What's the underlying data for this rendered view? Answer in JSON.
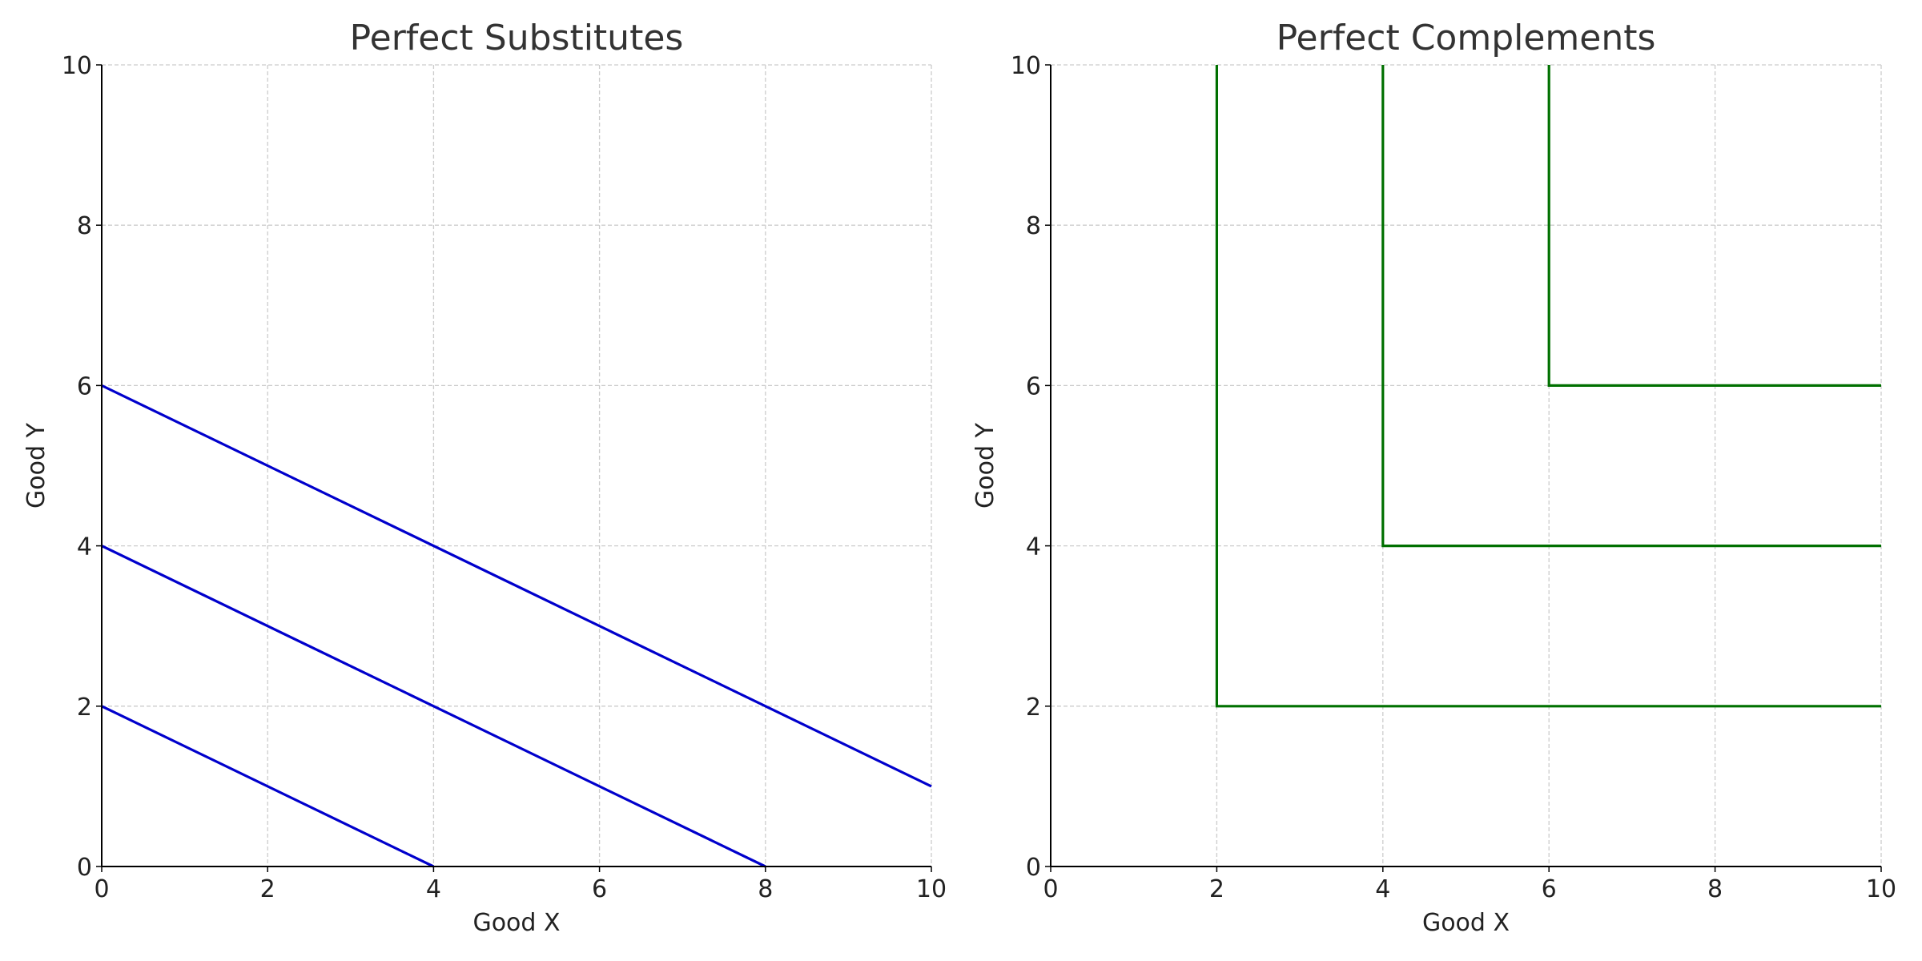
{
  "chart_data": [
    {
      "type": "line",
      "title": "Perfect Substitutes",
      "xlabel": "Good X",
      "ylabel": "Good Y",
      "xlim": [
        0,
        10
      ],
      "ylim": [
        0,
        10
      ],
      "xticks": [
        0,
        2,
        4,
        6,
        8,
        10
      ],
      "yticks": [
        0,
        2,
        4,
        6,
        8,
        10
      ],
      "grid": true,
      "series": [
        {
          "color": "#0000cc",
          "x": [
            0,
            4
          ],
          "values": [
            2,
            0
          ]
        },
        {
          "color": "#0000cc",
          "x": [
            0,
            8
          ],
          "values": [
            4,
            0
          ]
        },
        {
          "color": "#0000cc",
          "x": [
            0,
            10
          ],
          "values": [
            6,
            1
          ]
        }
      ]
    },
    {
      "type": "line",
      "title": "Perfect Complements",
      "xlabel": "Good X",
      "ylabel": "Good Y",
      "xlim": [
        0,
        10
      ],
      "ylim": [
        0,
        10
      ],
      "xticks": [
        0,
        2,
        4,
        6,
        8,
        10
      ],
      "yticks": [
        0,
        2,
        4,
        6,
        8,
        10
      ],
      "grid": true,
      "series": [
        {
          "color": "#007000",
          "x": [
            2,
            2,
            10
          ],
          "values": [
            10,
            2,
            2
          ]
        },
        {
          "color": "#007000",
          "x": [
            4,
            4,
            10
          ],
          "values": [
            10,
            4,
            4
          ]
        },
        {
          "color": "#007000",
          "x": [
            6,
            6,
            10
          ],
          "values": [
            10,
            6,
            6
          ]
        }
      ]
    }
  ]
}
